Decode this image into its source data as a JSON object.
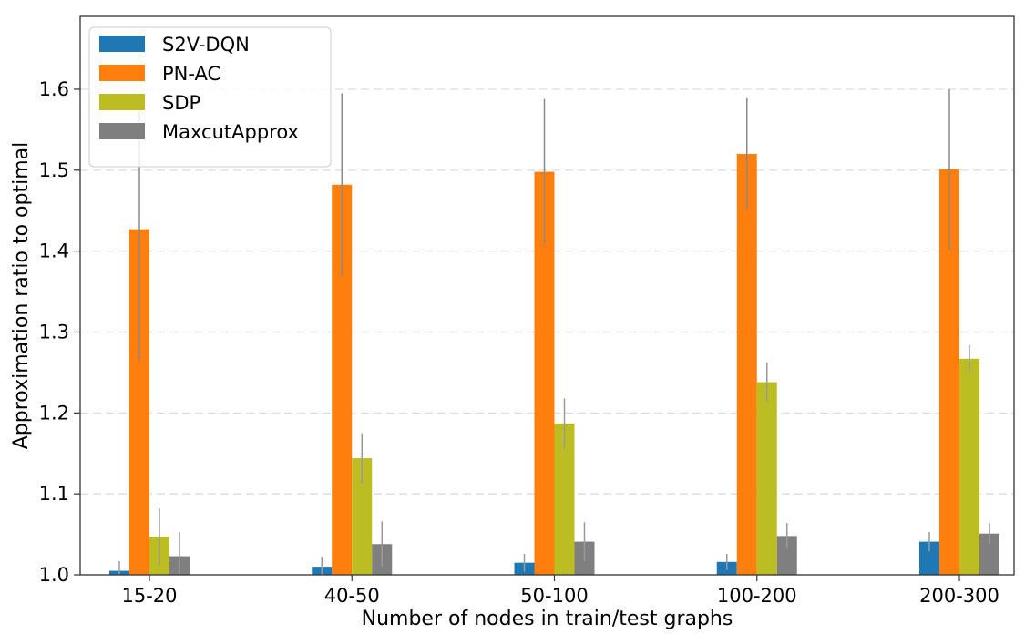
{
  "chart_data": {
    "type": "bar",
    "title": "",
    "xlabel": "Number of nodes in train/test graphs",
    "ylabel": "Approximation ratio to optimal",
    "categories": [
      "15-20",
      "40-50",
      "50-100",
      "100-200",
      "200-300"
    ],
    "ylim": [
      1.0,
      1.69
    ],
    "yticks": [
      "1.0",
      "1.1",
      "1.2",
      "1.3",
      "1.4",
      "1.5",
      "1.6"
    ],
    "grid": "horizontal-dashed",
    "legend_position": "top-left",
    "series": [
      {
        "name": "S2V-DQN",
        "color": "#1f77b4",
        "values": [
          1.005,
          1.01,
          1.015,
          1.016,
          1.041
        ],
        "errors": [
          0.012,
          0.012,
          0.011,
          0.01,
          0.012
        ]
      },
      {
        "name": "PN-AC",
        "color": "#ff7f0e",
        "values": [
          1.427,
          1.482,
          1.498,
          1.52,
          1.501
        ],
        "errors": [
          0.162,
          0.113,
          0.09,
          0.069,
          0.099
        ]
      },
      {
        "name": "SDP",
        "color": "#bcbd22",
        "values": [
          1.047,
          1.144,
          1.187,
          1.238,
          1.267
        ],
        "errors": [
          0.035,
          0.031,
          0.031,
          0.024,
          0.017
        ]
      },
      {
        "name": "MaxcutApprox",
        "color": "#7f7f7f",
        "values": [
          1.023,
          1.038,
          1.041,
          1.048,
          1.051
        ],
        "errors": [
          0.03,
          0.028,
          0.024,
          0.016,
          0.013
        ]
      }
    ]
  }
}
